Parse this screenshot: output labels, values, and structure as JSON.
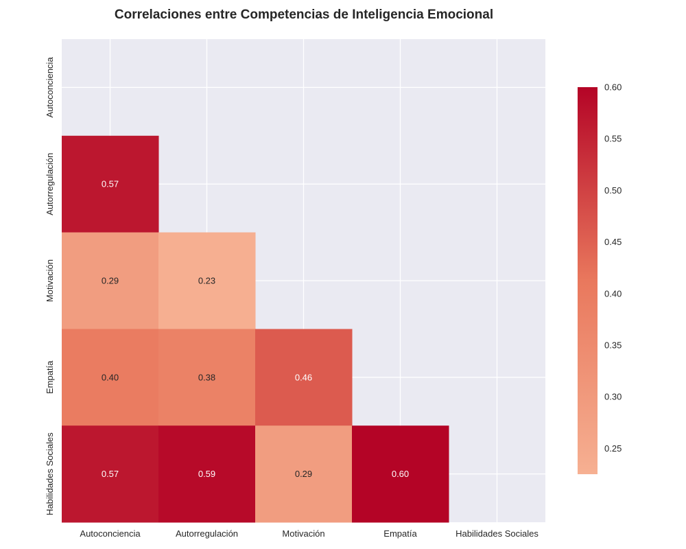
{
  "chart_data": {
    "type": "heatmap",
    "title": "Correlaciones entre Competencias de Inteligencia Emocional",
    "categories": [
      "Autoconciencia",
      "Autorregulación",
      "Motivación",
      "Empatía",
      "Habilidades Sociales"
    ],
    "mask": "upper-triangle-including-diagonal",
    "cells": [
      {
        "row": "Autorregulación",
        "col": "Autoconciencia",
        "value": 0.57,
        "label": "0.57"
      },
      {
        "row": "Motivación",
        "col": "Autoconciencia",
        "value": 0.29,
        "label": "0.29"
      },
      {
        "row": "Motivación",
        "col": "Autorregulación",
        "value": 0.23,
        "label": "0.23"
      },
      {
        "row": "Empatía",
        "col": "Autoconciencia",
        "value": 0.4,
        "label": "0.40"
      },
      {
        "row": "Empatía",
        "col": "Autorregulación",
        "value": 0.38,
        "label": "0.38"
      },
      {
        "row": "Empatía",
        "col": "Motivación",
        "value": 0.46,
        "label": "0.46"
      },
      {
        "row": "Habilidades Sociales",
        "col": "Autoconciencia",
        "value": 0.57,
        "label": "0.57"
      },
      {
        "row": "Habilidades Sociales",
        "col": "Autorregulación",
        "value": 0.59,
        "label": "0.59"
      },
      {
        "row": "Habilidades Sociales",
        "col": "Motivación",
        "value": 0.29,
        "label": "0.29"
      },
      {
        "row": "Habilidades Sociales",
        "col": "Empatía",
        "value": 0.6,
        "label": "0.60"
      }
    ],
    "colorbar": {
      "vmin": 0.225,
      "vmax": 0.6,
      "ticks": [
        "0.25",
        "0.30",
        "0.35",
        "0.40",
        "0.45",
        "0.50",
        "0.55",
        "0.60"
      ],
      "colormap": "light salmon to deep red",
      "color_low": "#f6b092",
      "color_mid": "#e9785d",
      "color_high": "#b40426"
    },
    "background_color": "#eaeaf2",
    "grid": true
  }
}
